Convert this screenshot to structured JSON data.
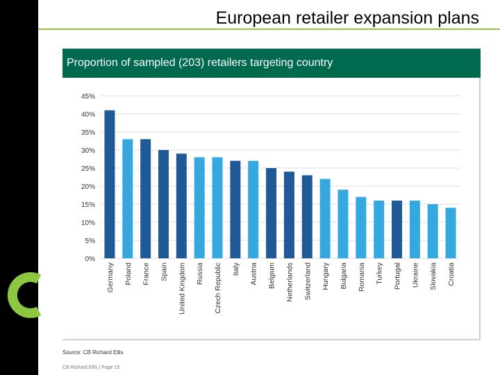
{
  "slide": {
    "title": "European retailer expansion plans",
    "panel_title": "Proportion of sampled (203) retailers targeting country",
    "source": "Source: CB Richard Ellis",
    "footer": "CB Richard Ellis | Page 15"
  },
  "colors": {
    "dark_bar": "#1f5a96",
    "light_bar": "#35a8e0",
    "header_green": "#006a4e",
    "accent_green": "#8dc63f"
  },
  "chart_data": {
    "type": "bar",
    "title": "Proportion of sampled (203) retailers targeting country",
    "xlabel": "",
    "ylabel": "",
    "ylim": [
      0,
      45
    ],
    "ytick_step": 5,
    "ytick_suffix": "%",
    "grid": true,
    "categories": [
      "Germany",
      "Poland",
      "France",
      "Spain",
      "United Kingdom",
      "Russia",
      "Czech Republic",
      "Italy",
      "Austria",
      "Belgium",
      "Netherlands",
      "Switzerland",
      "Hungary",
      "Bulgaria",
      "Romania",
      "Turkey",
      "Portugal",
      "Ukraine",
      "Slovakia",
      "Croatia"
    ],
    "values": [
      41,
      33,
      33,
      30,
      29,
      28,
      28,
      27,
      27,
      25,
      24,
      23,
      22,
      19,
      17,
      16,
      16,
      16,
      15,
      14
    ],
    "bar_shade": [
      "dark",
      "light",
      "dark",
      "dark",
      "dark",
      "light",
      "light",
      "dark",
      "light",
      "dark",
      "dark",
      "dark",
      "light",
      "light",
      "light",
      "light",
      "dark",
      "light",
      "light",
      "light"
    ]
  }
}
